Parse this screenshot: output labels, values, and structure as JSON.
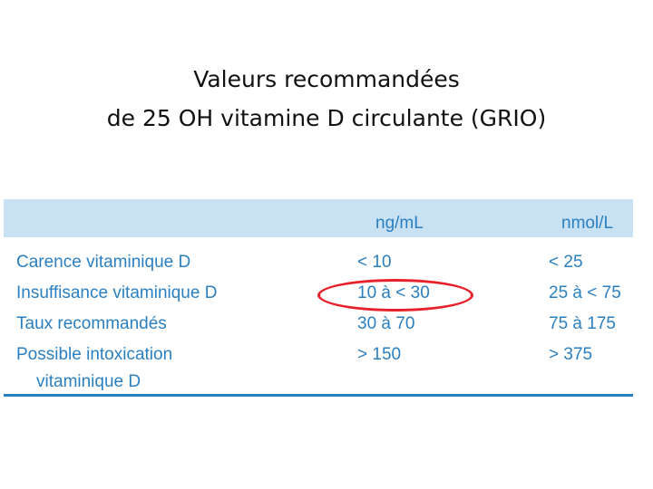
{
  "title": {
    "line1": "Valeurs recommandées",
    "line2": "de 25 OH vitamine D circulante (GRIO)"
  },
  "table": {
    "headers": [
      "",
      "ng/mL",
      "nmol/L"
    ],
    "rows": [
      {
        "label": "Carence vitaminique D",
        "label2": "",
        "ng": "< 10",
        "nmol": "< 25"
      },
      {
        "label": "Insuffisance vitaminique D",
        "label2": "",
        "ng": "10 à < 30",
        "nmol": "25 à < 75"
      },
      {
        "label": "Taux recommandés",
        "label2": "",
        "ng": "30 à 70",
        "nmol": "75 à 175"
      },
      {
        "label": "Possible intoxication",
        "label2": "vitaminique D",
        "ng": "> 150",
        "nmol": "> 375"
      }
    ],
    "highlighted_cell": "10 à < 30",
    "colors": {
      "header_background": "#c9e2f3",
      "text": "#2a7fc0",
      "highlight_circle": "#e8202a"
    }
  }
}
